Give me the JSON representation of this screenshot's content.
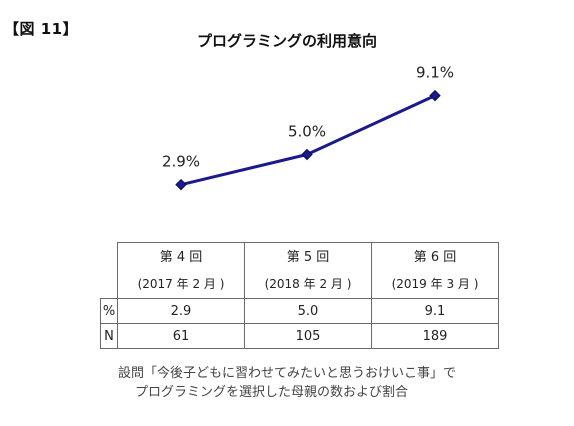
{
  "figure_label": "【図 11】",
  "chart_data": {
    "type": "line",
    "title": "プログラミングの利用意向",
    "categories": [
      "第 4 回",
      "第 5 回",
      "第 6 回"
    ],
    "values": [
      2.9,
      5.0,
      9.1
    ],
    "data_labels": [
      "2.9%",
      "5.0%",
      "9.1%"
    ],
    "color": "#1a1a8c",
    "grid": false,
    "legend": "none"
  },
  "table": {
    "headers": [
      {
        "round": "第 4 回",
        "date": "(2017 年 2 月 )"
      },
      {
        "round": "第 5 回",
        "date": "(2018 年 2 月 )"
      },
      {
        "round": "第 6 回",
        "date": "(2019 年 3 月 )"
      }
    ],
    "rows": [
      {
        "label": "%",
        "values": [
          "2.9",
          "5.0",
          "9.1"
        ]
      },
      {
        "label": "N",
        "values": [
          "61",
          "105",
          "189"
        ]
      }
    ]
  },
  "caption": {
    "line1": "設問「今後子どもに習わせてみたいと思うおけいこ事」で",
    "line2": "プログラミングを選択した母親の数および割合"
  }
}
